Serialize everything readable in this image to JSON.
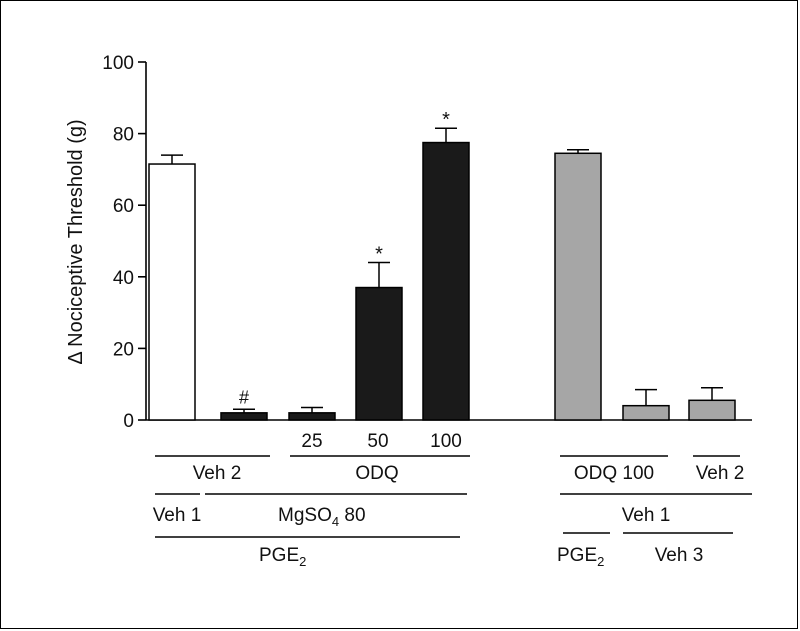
{
  "chart_data": {
    "type": "bar",
    "ylabel": "Δ Nociceptive Threshold (g)",
    "ylim": [
      0,
      100
    ],
    "yticks": [
      0,
      20,
      40,
      60,
      80,
      100
    ],
    "bars": [
      {
        "value": 71.5,
        "error": 2.5,
        "color": "#ffffff",
        "annotation": ""
      },
      {
        "value": 2,
        "error": 1,
        "color": "#1a1a1a",
        "annotation": "#"
      },
      {
        "value": 2,
        "error": 1.5,
        "color": "#1a1a1a",
        "annotation": ""
      },
      {
        "value": 37,
        "error": 7,
        "color": "#1a1a1a",
        "annotation": "*"
      },
      {
        "value": 77.5,
        "error": 4,
        "color": "#1a1a1a",
        "annotation": "*"
      },
      {
        "value": 74.5,
        "error": 1,
        "color": "#a6a6a6",
        "annotation": ""
      },
      {
        "value": 4,
        "error": 4.5,
        "color": "#a6a6a6",
        "annotation": ""
      },
      {
        "value": 5.5,
        "error": 3.5,
        "color": "#a6a6a6",
        "annotation": ""
      }
    ],
    "group_labels": {
      "doses": [
        "25",
        "50",
        "100"
      ],
      "veh2_left": "Veh 2",
      "odq": "ODQ",
      "veh1_left": "Veh 1",
      "mgso4_main": "MgSO",
      "mgso4_sub": "4",
      "mgso4_dose": " 80",
      "pge2_left_main": "PGE",
      "pge2_left_sub": "2",
      "odq100": "ODQ 100",
      "veh2_right": "Veh 2",
      "veh1_right": "Veh 1",
      "pge2_right_main": "PGE",
      "pge2_right_sub": "2",
      "veh3": "Veh 3"
    }
  }
}
